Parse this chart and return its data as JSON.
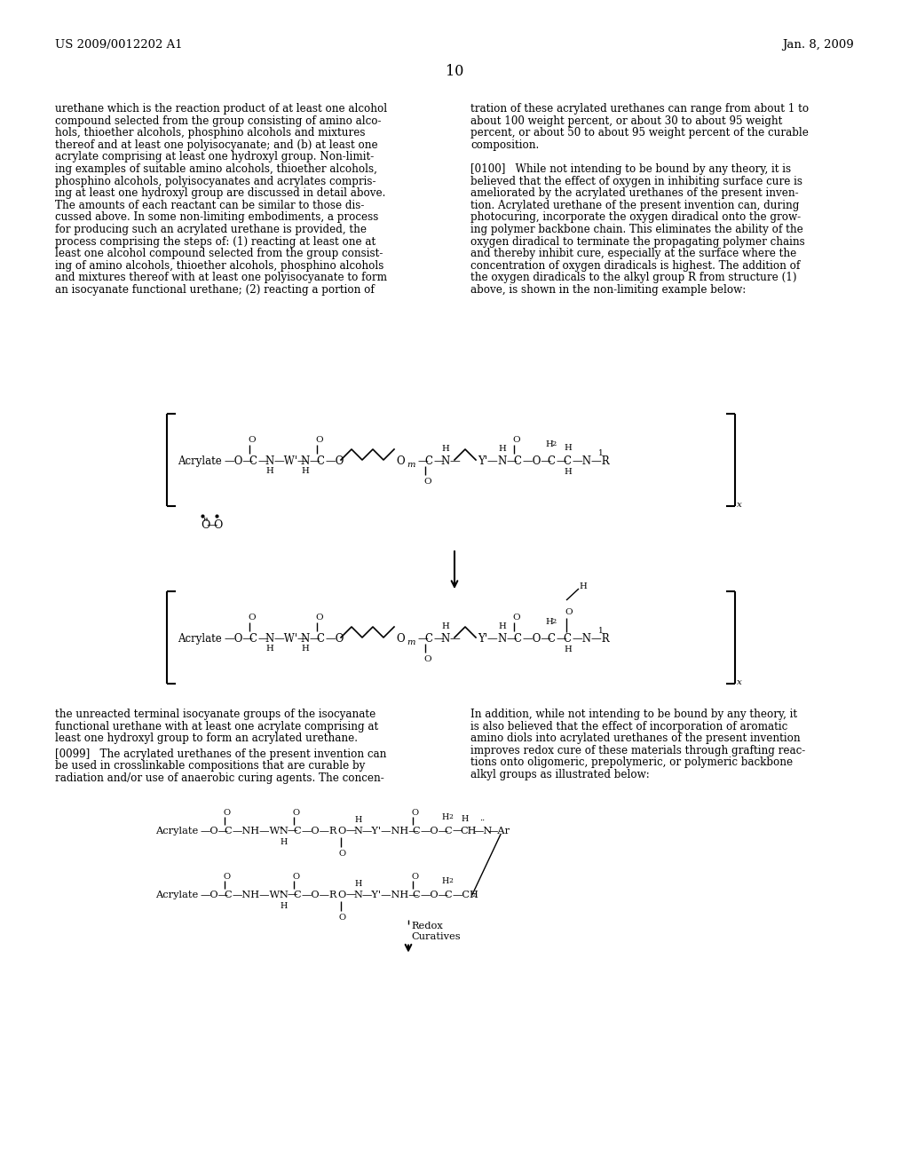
{
  "bg_color": "#ffffff",
  "header_left": "US 2009/0012202 A1",
  "header_right": "Jan. 8, 2009",
  "page_number": "10",
  "left_col": [
    "urethane which is the reaction product of at least one alcohol",
    "compound selected from the group consisting of amino alco-",
    "hols, thioether alcohols, phosphino alcohols and mixtures",
    "thereof and at least one polyisocyanate; and (b) at least one",
    "acrylate comprising at least one hydroxyl group. Non-limit-",
    "ing examples of suitable amino alcohols, thioether alcohols,",
    "phosphino alcohols, polyisocyanates and acrylates compris-",
    "ing at least one hydroxyl group are discussed in detail above.",
    "The amounts of each reactant can be similar to those dis-",
    "cussed above. In some non-limiting embodiments, a process",
    "for producing such an acrylated urethane is provided, the",
    "process comprising the steps of: (1) reacting at least one at",
    "least one alcohol compound selected from the group consist-",
    "ing of amino alcohols, thioether alcohols, phosphino alcohols",
    "and mixtures thereof with at least one polyisocyanate to form",
    "an isocyanate functional urethane; (2) reacting a portion of"
  ],
  "right_col": [
    "tration of these acrylated urethanes can range from about 1 to",
    "about 100 weight percent, or about 30 to about 95 weight",
    "percent, or about 50 to about 95 weight percent of the curable",
    "composition.",
    "",
    "[0100]   While not intending to be bound by any theory, it is",
    "believed that the effect of oxygen in inhibiting surface cure is",
    "ameliorated by the acrylated urethanes of the present inven-",
    "tion. Acrylated urethane of the present invention can, during",
    "photocuring, incorporate the oxygen diradical onto the grow-",
    "ing polymer backbone chain. This eliminates the ability of the",
    "oxygen diradical to terminate the propagating polymer chains",
    "and thereby inhibit cure, especially at the surface where the",
    "concentration of oxygen diradicals is highest. The addition of",
    "the oxygen diradicals to the alkyl group R from structure (1)",
    "above, is shown in the non-limiting example below:"
  ],
  "bot_left_col1": [
    "the unreacted terminal isocyanate groups of the isocyanate",
    "functional urethane with at least one acrylate comprising at",
    "least one hydroxyl group to form an acrylated urethane."
  ],
  "bot_left_col2": [
    "[0099]   The acrylated urethanes of the present invention can",
    "be used in crosslinkable compositions that are curable by",
    "radiation and/or use of anaerobic curing agents. The concen-"
  ],
  "bot_right_col": [
    "In addition, while not intending to be bound by any theory, it",
    "is also believed that the effect of incorporation of aromatic",
    "amino diols into acrylated urethanes of the present invention",
    "improves redox cure of these materials through grafting reac-",
    "tions onto oligomeric, prepolymeric, or polymeric backbone",
    "alkyl groups as illustrated below:"
  ]
}
